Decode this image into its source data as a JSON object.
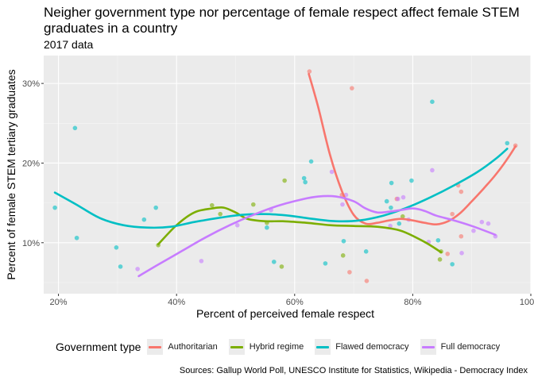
{
  "chart_data": {
    "type": "scatter",
    "title": "Neigher government type nor percentage of female respect affect female STEM graduates in a country",
    "subtitle": "2017 data",
    "xlabel": "Percent of perceived female respect",
    "ylabel": "Percent of female STEM tertiary graduates",
    "caption": "Sources: Gallup World Poll, UNESCO Institute for Statistics, Wikipedia - Democracy Index",
    "xlim": [
      0.175,
      1.0
    ],
    "ylim": [
      0.036,
      0.335
    ],
    "x_ticks": [
      0.2,
      0.4,
      0.6,
      0.8,
      1.0
    ],
    "x_tick_labels": [
      "20%",
      "40%",
      "60%",
      "80%",
      "100%"
    ],
    "y_ticks": [
      0.1,
      0.2,
      0.3
    ],
    "y_tick_labels": [
      "10%",
      "20%",
      "30%"
    ],
    "grid": true,
    "background": "#ebebeb",
    "legend": {
      "title": "Government type",
      "position": "bottom"
    },
    "series": [
      {
        "name": "Authoritarian",
        "color": "#F8766D",
        "points": [
          [
            0.625,
            0.315
          ],
          [
            0.697,
            0.294
          ],
          [
            0.68,
            0.16
          ],
          [
            0.693,
            0.063
          ],
          [
            0.722,
            0.052
          ],
          [
            0.773,
            0.155
          ],
          [
            0.859,
            0.086
          ],
          [
            0.867,
            0.136
          ],
          [
            0.877,
            0.172
          ],
          [
            0.882,
            0.164
          ],
          [
            0.882,
            0.108
          ],
          [
            0.974,
            0.222
          ]
        ],
        "smooth": [
          [
            0.624,
            0.312
          ],
          [
            0.64,
            0.27
          ],
          [
            0.66,
            0.21
          ],
          [
            0.68,
            0.165
          ],
          [
            0.7,
            0.135
          ],
          [
            0.72,
            0.124
          ],
          [
            0.74,
            0.125
          ],
          [
            0.76,
            0.128
          ],
          [
            0.78,
            0.13
          ],
          [
            0.8,
            0.128
          ],
          [
            0.82,
            0.125
          ],
          [
            0.84,
            0.123
          ],
          [
            0.86,
            0.127
          ],
          [
            0.88,
            0.137
          ],
          [
            0.9,
            0.152
          ],
          [
            0.92,
            0.168
          ],
          [
            0.94,
            0.185
          ],
          [
            0.96,
            0.205
          ],
          [
            0.974,
            0.221
          ]
        ]
      },
      {
        "name": "Hybrid regime",
        "color": "#7CAE00",
        "points": [
          [
            0.369,
            0.097
          ],
          [
            0.46,
            0.147
          ],
          [
            0.474,
            0.136
          ],
          [
            0.53,
            0.148
          ],
          [
            0.553,
            0.125
          ],
          [
            0.578,
            0.07
          ],
          [
            0.583,
            0.178
          ],
          [
            0.682,
            0.084
          ],
          [
            0.783,
            0.133
          ],
          [
            0.846,
            0.079
          ],
          [
            0.848,
            0.089
          ]
        ],
        "smooth": [
          [
            0.369,
            0.098
          ],
          [
            0.4,
            0.122
          ],
          [
            0.43,
            0.138
          ],
          [
            0.46,
            0.143
          ],
          [
            0.48,
            0.144
          ],
          [
            0.5,
            0.138
          ],
          [
            0.52,
            0.13
          ],
          [
            0.55,
            0.127
          ],
          [
            0.58,
            0.127
          ],
          [
            0.62,
            0.125
          ],
          [
            0.66,
            0.122
          ],
          [
            0.7,
            0.121
          ],
          [
            0.74,
            0.12
          ],
          [
            0.78,
            0.115
          ],
          [
            0.82,
            0.101
          ],
          [
            0.848,
            0.088
          ]
        ]
      },
      {
        "name": "Flawed democracy",
        "color": "#00BFC4",
        "points": [
          [
            0.194,
            0.144
          ],
          [
            0.228,
            0.244
          ],
          [
            0.231,
            0.106
          ],
          [
            0.298,
            0.094
          ],
          [
            0.305,
            0.07
          ],
          [
            0.345,
            0.129
          ],
          [
            0.365,
            0.144
          ],
          [
            0.553,
            0.119
          ],
          [
            0.565,
            0.076
          ],
          [
            0.616,
            0.181
          ],
          [
            0.618,
            0.176
          ],
          [
            0.628,
            0.202
          ],
          [
            0.652,
            0.074
          ],
          [
            0.683,
            0.102
          ],
          [
            0.721,
            0.089
          ],
          [
            0.756,
            0.152
          ],
          [
            0.763,
            0.144
          ],
          [
            0.764,
            0.175
          ],
          [
            0.777,
            0.124
          ],
          [
            0.798,
            0.178
          ],
          [
            0.833,
            0.277
          ],
          [
            0.843,
            0.103
          ],
          [
            0.867,
            0.073
          ],
          [
            0.96,
            0.225
          ]
        ],
        "smooth": [
          [
            0.194,
            0.163
          ],
          [
            0.23,
            0.148
          ],
          [
            0.27,
            0.131
          ],
          [
            0.31,
            0.122
          ],
          [
            0.35,
            0.119
          ],
          [
            0.39,
            0.12
          ],
          [
            0.43,
            0.126
          ],
          [
            0.47,
            0.131
          ],
          [
            0.51,
            0.135
          ],
          [
            0.55,
            0.136
          ],
          [
            0.59,
            0.134
          ],
          [
            0.63,
            0.13
          ],
          [
            0.67,
            0.127
          ],
          [
            0.71,
            0.128
          ],
          [
            0.75,
            0.134
          ],
          [
            0.79,
            0.144
          ],
          [
            0.83,
            0.157
          ],
          [
            0.87,
            0.172
          ],
          [
            0.91,
            0.189
          ],
          [
            0.94,
            0.205
          ],
          [
            0.96,
            0.218
          ]
        ]
      },
      {
        "name": "Full democracy",
        "color": "#C77CFF",
        "points": [
          [
            0.334,
            0.067
          ],
          [
            0.442,
            0.077
          ],
          [
            0.503,
            0.122
          ],
          [
            0.56,
            0.141
          ],
          [
            0.663,
            0.189
          ],
          [
            0.681,
            0.148
          ],
          [
            0.687,
            0.16
          ],
          [
            0.762,
            0.121
          ],
          [
            0.775,
            0.155
          ],
          [
            0.784,
            0.157
          ],
          [
            0.793,
            0.129
          ],
          [
            0.827,
            0.101
          ],
          [
            0.833,
            0.191
          ],
          [
            0.883,
            0.087
          ],
          [
            0.903,
            0.115
          ],
          [
            0.917,
            0.126
          ],
          [
            0.928,
            0.124
          ],
          [
            0.94,
            0.108
          ]
        ],
        "smooth": [
          [
            0.336,
            0.058
          ],
          [
            0.37,
            0.073
          ],
          [
            0.41,
            0.09
          ],
          [
            0.45,
            0.107
          ],
          [
            0.49,
            0.122
          ],
          [
            0.53,
            0.135
          ],
          [
            0.57,
            0.146
          ],
          [
            0.61,
            0.154
          ],
          [
            0.64,
            0.158
          ],
          [
            0.67,
            0.158
          ],
          [
            0.7,
            0.152
          ],
          [
            0.72,
            0.143
          ],
          [
            0.74,
            0.138
          ],
          [
            0.76,
            0.139
          ],
          [
            0.78,
            0.141
          ],
          [
            0.8,
            0.143
          ],
          [
            0.82,
            0.14
          ],
          [
            0.84,
            0.134
          ],
          [
            0.87,
            0.128
          ],
          [
            0.9,
            0.121
          ],
          [
            0.94,
            0.11
          ]
        ]
      }
    ]
  }
}
